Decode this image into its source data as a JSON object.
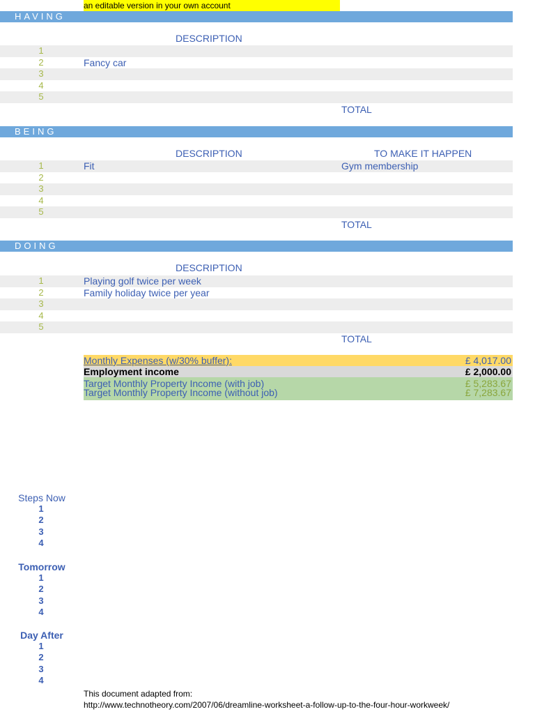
{
  "note": "an editable version in your own account",
  "having": {
    "title": "HAVING",
    "description_header": "DESCRIPTION",
    "rows": [
      {
        "n": "1",
        "desc": ""
      },
      {
        "n": "2",
        "desc": "Fancy car"
      },
      {
        "n": "3",
        "desc": ""
      },
      {
        "n": "4",
        "desc": ""
      },
      {
        "n": "5",
        "desc": ""
      }
    ],
    "total_label": "TOTAL"
  },
  "being": {
    "title": "BEING",
    "description_header": "DESCRIPTION",
    "make_it_happen_header": "TO MAKE IT HAPPEN",
    "rows": [
      {
        "n": "1",
        "desc": "Fit",
        "how": "Gym membership"
      },
      {
        "n": "2",
        "desc": "",
        "how": ""
      },
      {
        "n": "3",
        "desc": "",
        "how": ""
      },
      {
        "n": "4",
        "desc": "",
        "how": ""
      },
      {
        "n": "5",
        "desc": "",
        "how": ""
      }
    ],
    "total_label": "TOTAL"
  },
  "doing": {
    "title": "DOING",
    "description_header": "DESCRIPTION",
    "rows": [
      {
        "n": "1",
        "desc": "Playing golf twice per week"
      },
      {
        "n": "2",
        "desc": "Family holiday twice per year"
      },
      {
        "n": "3",
        "desc": ""
      },
      {
        "n": "4",
        "desc": ""
      },
      {
        "n": "5",
        "desc": ""
      }
    ],
    "total_label": "TOTAL"
  },
  "summary": {
    "monthly_expenses_label": "Monthly Expenses (w/30% buffer):",
    "monthly_expenses_value": "£ 4,017.00",
    "employment_income_label": "Employment income",
    "employment_income_value": "£ 2,000.00",
    "target_with_job_label": "Target Monthly Property Income (with job)",
    "target_with_job_value": "£ 5,283.67",
    "target_without_job_label": "Target Monthly Property Income (without job)",
    "target_without_job_value": "£ 7,283.67"
  },
  "steps": {
    "now_title": "Steps Now",
    "now": [
      "1",
      "2",
      "3",
      "4"
    ],
    "tomorrow_title": "Tomorrow",
    "tomorrow": [
      "1",
      "2",
      "3",
      "4"
    ],
    "day_after_title": "Day After",
    "day_after": [
      "1",
      "2",
      "3",
      "4"
    ]
  },
  "footer": {
    "line1": "This document adapted from:",
    "line2": "http://www.technotheory.com/2007/06/dreamline-worksheet-a-follow-up-to-the-four-hour-workweek/"
  },
  "colors": {
    "section_bar": "#6fa8dc",
    "row_shade": "#ededed",
    "note_bg": "#ffff00",
    "expenses_bg": "#ffd966",
    "income_bg": "#d9d9d9",
    "target_bg": "#b6d7a8",
    "text_blue": "#3c5fb3",
    "number_green": "#a6b84a"
  }
}
